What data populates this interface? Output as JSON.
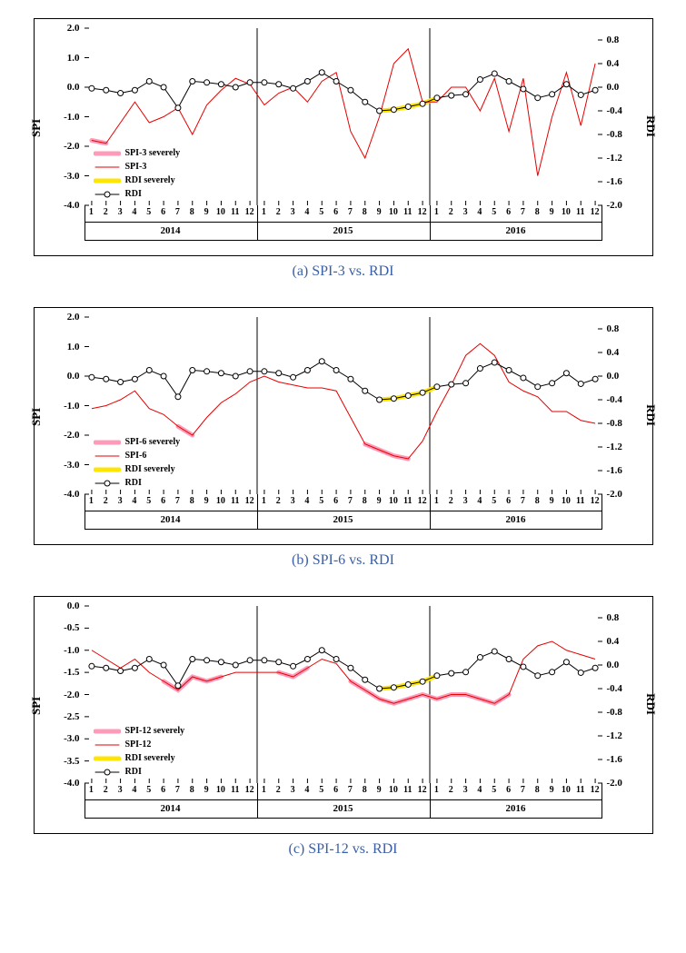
{
  "months": [
    1,
    2,
    3,
    4,
    5,
    6,
    7,
    8,
    9,
    10,
    11,
    12,
    1,
    2,
    3,
    4,
    5,
    6,
    7,
    8,
    9,
    10,
    11,
    12,
    1,
    2,
    3,
    4,
    5,
    6,
    7,
    8,
    9,
    10,
    11,
    12
  ],
  "years": [
    "2014",
    "2015",
    "2016"
  ],
  "rdi_left_ylim": [
    -4.0,
    2.0
  ],
  "rdi_right_ylim": [
    -2.0,
    1.0
  ],
  "left_ticks": [
    -4.0,
    -3.0,
    -2.0,
    -1.0,
    0.0,
    1.0,
    2.0
  ],
  "left_ticks_c": [
    -4.0,
    -3.5,
    -3.0,
    -2.5,
    -2.0,
    -1.5,
    -1.0,
    -0.5,
    0.0
  ],
  "right_ticks": [
    -2.0,
    -1.6,
    -1.2,
    -0.8,
    -0.4,
    0.0,
    0.4,
    0.8
  ],
  "rdi_values": [
    -0.02,
    -0.05,
    -0.1,
    -0.05,
    0.1,
    0.0,
    -0.35,
    0.1,
    0.08,
    0.05,
    0.0,
    0.08,
    0.08,
    0.05,
    -0.02,
    0.1,
    0.25,
    0.1,
    -0.05,
    -0.25,
    -0.4,
    -0.38,
    -0.33,
    -0.28,
    -0.18,
    -0.14,
    -0.12,
    0.13,
    0.23,
    0.1,
    -0.03,
    -0.18,
    -0.12,
    0.05,
    -0.13,
    -0.05
  ],
  "rdi_severe_range": [
    20,
    24
  ],
  "charts": [
    {
      "id": "a",
      "caption": "(a) SPI-3 vs. RDI",
      "spi_name": "SPI-3",
      "spi_severe_name": "SPI-3 severely",
      "left_ylim": [
        -4.0,
        2.0
      ],
      "left_ticks_key": "left_ticks",
      "y_label_left": "SPI",
      "y_label_right": "RDI",
      "spi_values": [
        -1.8,
        -1.9,
        -1.2,
        -0.5,
        -1.2,
        -1.0,
        -0.7,
        -1.6,
        -0.6,
        -0.1,
        0.3,
        0.1,
        -0.6,
        -0.2,
        0.0,
        -0.5,
        0.2,
        0.5,
        -1.5,
        -2.4,
        -1.0,
        0.8,
        1.3,
        -0.5,
        -0.5,
        0.0,
        0.0,
        -0.8,
        0.3,
        -1.5,
        0.3,
        -3.0,
        -1.0,
        0.5,
        -1.3,
        0.8
      ],
      "spi_severe_ranges": [
        [
          0,
          1
        ]
      ]
    },
    {
      "id": "b",
      "caption": "(b) SPI-6 vs. RDI",
      "spi_name": "SPI-6",
      "spi_severe_name": "SPI-6 severely",
      "left_ylim": [
        -4.0,
        2.0
      ],
      "left_ticks_key": "left_ticks",
      "y_label_left": "SPI",
      "y_label_right": "RDI",
      "spi_values": [
        -1.1,
        -1.0,
        -0.8,
        -0.5,
        -1.1,
        -1.3,
        -1.7,
        -2.0,
        -1.4,
        -0.9,
        -0.6,
        -0.2,
        0.0,
        -0.2,
        -0.3,
        -0.4,
        -0.4,
        -0.5,
        -1.4,
        -2.3,
        -2.5,
        -2.7,
        -2.8,
        -2.2,
        -1.2,
        -0.3,
        0.7,
        1.1,
        0.7,
        -0.2,
        -0.5,
        -0.7,
        -1.2,
        -1.2,
        -1.5,
        -1.6
      ],
      "spi_severe_ranges": [
        [
          6,
          7
        ],
        [
          19,
          22
        ]
      ]
    },
    {
      "id": "c",
      "caption": "(c) SPI-12 vs. RDI",
      "spi_name": "SPI-12",
      "spi_severe_name": "SPI-12 severely",
      "left_ylim": [
        -4.0,
        0.0
      ],
      "left_ticks_key": "left_ticks_c",
      "y_label_left": "SPI",
      "y_label_right": "RDI",
      "spi_values": [
        -1.0,
        -1.2,
        -1.4,
        -1.2,
        -1.5,
        -1.7,
        -1.9,
        -1.6,
        -1.7,
        -1.6,
        -1.5,
        -1.5,
        -1.5,
        -1.5,
        -1.6,
        -1.4,
        -1.2,
        -1.3,
        -1.7,
        -1.9,
        -2.1,
        -2.2,
        -2.1,
        -2.0,
        -2.1,
        -2.0,
        -2.0,
        -2.1,
        -2.2,
        -2.0,
        -1.2,
        -0.9,
        -0.8,
        -1.0,
        -1.1,
        -1.2
      ],
      "spi_severe_ranges": [
        [
          5,
          9
        ],
        [
          13,
          15
        ],
        [
          18,
          29
        ]
      ]
    }
  ],
  "colors": {
    "spi_line": "#e60000",
    "spi_severe": "#ff9bb8",
    "rdi_line": "#000000",
    "rdi_severe": "#ffe600",
    "background": "#ffffff",
    "axis": "#000000"
  },
  "legend_items": [
    {
      "key": "spi_severe",
      "type": "thick"
    },
    {
      "key": "spi",
      "type": "line"
    },
    {
      "key": "rdi_severe",
      "type": "thick"
    },
    {
      "key": "rdi",
      "type": "marker"
    }
  ],
  "line_width_spi": 1,
  "line_width_severe": 5,
  "line_width_rdi": 1,
  "marker_radius": 3
}
